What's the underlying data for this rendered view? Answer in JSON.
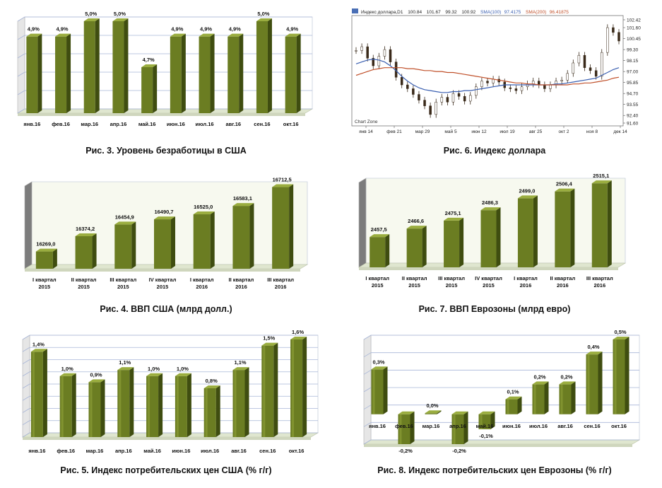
{
  "colors": {
    "bar_front": "#6b7d22",
    "bar_light": "#9aad3f",
    "bar_dark": "#3f4d10",
    "floor": "#dfe6cf",
    "wall_grid": "#a8b6d8",
    "fx_price": "#3a2a1a",
    "fx_ma1": "#3a5fb0",
    "fx_ma2": "#c0502a"
  },
  "figures": {
    "fig3": {
      "caption": "Рис. 3. Уровень безработицы в США",
      "chart_data": {
        "type": "bar",
        "categories": [
          "янв.16",
          "фев.16",
          "мар.16",
          "апр.16",
          "май.16",
          "июн.16",
          "июл.16",
          "авг.16",
          "сен.16",
          "окт.16"
        ],
        "values": [
          4.9,
          4.9,
          5.0,
          5.0,
          4.7,
          4.9,
          4.9,
          4.9,
          5.0,
          4.9
        ],
        "labels": [
          "4,9%",
          "4,9%",
          "5,0%",
          "5,0%",
          "4,7%",
          "4,9%",
          "4,9%",
          "4,9%",
          "5,0%",
          "4,9%"
        ],
        "ylim": [
          4.4,
          5.0
        ],
        "grid": true
      }
    },
    "fig4": {
      "caption": "Рис. 4. ВВП США (млрд долл.)",
      "chart_data": {
        "type": "bar",
        "categories": [
          [
            "I квартал",
            "2015"
          ],
          [
            "II квартал",
            "2015"
          ],
          [
            "III квартал",
            "2015"
          ],
          [
            "IV квартал",
            "2015"
          ],
          [
            "I квартал",
            "2016"
          ],
          [
            "II квартал",
            "2016"
          ],
          [
            "III квартал",
            "2016"
          ]
        ],
        "values": [
          16269.0,
          16374.2,
          16454.9,
          16490.7,
          16525.0,
          16583.1,
          16712.5
        ],
        "labels": [
          "16269,0",
          "16374,2",
          "16454,9",
          "16490,7",
          "16525,0",
          "16583,1",
          "16712,5"
        ],
        "ylim": [
          16150,
          16720
        ],
        "grid": false
      }
    },
    "fig5": {
      "caption": "Рис. 5. Индекс потребительских цен США (% г/г)",
      "chart_data": {
        "type": "bar",
        "categories": [
          "янв.16",
          "фев.16",
          "мар.16",
          "апр.16",
          "май.16",
          "июн.16",
          "июл.16",
          "авг.16",
          "сен.16",
          "окт.16"
        ],
        "values": [
          1.4,
          1.0,
          0.9,
          1.1,
          1.0,
          1.0,
          0.8,
          1.1,
          1.5,
          1.6
        ],
        "labels": [
          "1,4%",
          "1,0%",
          "0,9%",
          "1,1%",
          "1,0%",
          "1,0%",
          "0,8%",
          "1,1%",
          "1,5%",
          "1,6%"
        ],
        "ylim": [
          0,
          1.6
        ],
        "grid": true
      }
    },
    "fig6": {
      "caption": "Рис. 6. Индекс доллара",
      "chart_data": {
        "type": "line",
        "series_labels": [
          "Индекс доллара,D1",
          "100.84",
          "101.67",
          "99.32",
          "100.92",
          "SMA(100)",
          "97.4175",
          "SMA(200)",
          "96.41875"
        ],
        "watermark": "Chart Zone",
        "x_ticks": [
          "янв 14",
          "фев 21",
          "мар 29",
          "май 5",
          "июн 12",
          "июл 19",
          "авг 25",
          "окт 2",
          "ноя 8",
          "дек 14"
        ],
        "y_ticks": [
          "102.42",
          "101.60",
          "100.45",
          "99.30",
          "98.15",
          "97.00",
          "95.85",
          "94.70",
          "93.55",
          "92.40",
          "91.60"
        ],
        "ylim": [
          91.6,
          102.42
        ],
        "x_index": [
          0,
          5,
          10,
          15,
          20,
          25,
          30,
          35,
          40,
          45,
          50,
          55,
          60,
          65,
          70,
          75,
          80,
          85,
          90,
          95,
          100,
          105,
          110,
          115,
          120,
          125,
          130,
          135,
          140,
          145,
          150,
          155,
          160,
          165,
          170,
          175,
          180,
          185,
          190,
          195,
          200,
          205,
          210,
          215,
          220,
          225,
          230
        ],
        "price": [
          99.2,
          99.6,
          98.4,
          97.6,
          98.6,
          99.3,
          98.0,
          96.4,
          95.6,
          95.2,
          94.6,
          94.0,
          93.4,
          92.5,
          93.8,
          94.3,
          93.8,
          94.7,
          94.4,
          93.9,
          94.5,
          95.4,
          96.0,
          95.8,
          96.2,
          95.9,
          95.3,
          95.2,
          95.0,
          95.4,
          95.7,
          96.0,
          95.6,
          95.2,
          95.6,
          96.0,
          96.1,
          96.8,
          97.9,
          98.7,
          97.4,
          97.1,
          96.5,
          99.0,
          101.6,
          101.1,
          100.2
        ],
        "sma100": [
          97.8,
          98.0,
          98.2,
          98.3,
          98.2,
          98.0,
          97.6,
          97.1,
          96.5,
          96.0,
          95.6,
          95.3,
          95.1,
          95.0,
          94.9,
          94.8,
          94.8,
          94.9,
          94.9,
          95.0,
          95.0,
          95.1,
          95.2,
          95.3,
          95.4,
          95.5,
          95.6,
          95.6,
          95.6,
          95.6,
          95.6,
          95.6,
          95.6,
          95.6,
          95.6,
          95.7,
          95.7,
          95.8,
          95.9,
          96.0,
          96.1,
          96.2,
          96.3,
          96.6,
          96.9,
          97.2,
          97.4
        ],
        "sma200": [
          96.6,
          96.8,
          97.0,
          97.2,
          97.3,
          97.4,
          97.4,
          97.4,
          97.4,
          97.3,
          97.3,
          97.2,
          97.1,
          97.1,
          97.0,
          97.0,
          96.9,
          96.9,
          96.8,
          96.7,
          96.6,
          96.5,
          96.4,
          96.3,
          96.2,
          96.1,
          96.0,
          95.9,
          95.8,
          95.8,
          95.7,
          95.7,
          95.6,
          95.6,
          95.6,
          95.6,
          95.6,
          95.6,
          95.7,
          95.7,
          95.8,
          95.8,
          95.9,
          96.0,
          96.1,
          96.3,
          96.4
        ]
      }
    },
    "fig7": {
      "caption": "Рис. 7. ВВП Еврозоны (млрд евро)",
      "chart_data": {
        "type": "bar",
        "categories": [
          [
            "I квартал",
            "2015"
          ],
          [
            "II квартал",
            "2015"
          ],
          [
            "III квартал",
            "2015"
          ],
          [
            "IV квартал",
            "2015"
          ],
          [
            "I квартал",
            "2016"
          ],
          [
            "II квартал",
            "2016"
          ],
          [
            "III квартал",
            "2016"
          ]
        ],
        "values": [
          2457.5,
          2466.6,
          2475.1,
          2486.3,
          2499.0,
          2506.4,
          2515.1
        ],
        "labels": [
          "2457,5",
          "2466,6",
          "2475,1",
          "2486,3",
          "2499,0",
          "2506,4",
          "2515,1"
        ],
        "ylim": [
          2425,
          2516
        ],
        "grid": false
      }
    },
    "fig8": {
      "caption": "Рис. 8. Индекс потребительских цен Еврозоны (% г/г)",
      "chart_data": {
        "type": "bar",
        "categories": [
          "янв.16",
          "фев.16",
          "мар.16",
          "апр.16",
          "май.16",
          "июн.16",
          "июл.16",
          "авг.16",
          "сен.16",
          "окт.16"
        ],
        "values": [
          0.3,
          -0.2,
          0.0,
          -0.2,
          -0.1,
          0.1,
          0.2,
          0.2,
          0.4,
          0.5
        ],
        "labels": [
          "0,3%",
          "-0,2%",
          "0,0%",
          "-0,2%",
          "-0,1%",
          "0,1%",
          "0,2%",
          "0,2%",
          "0,4%",
          "0,5%"
        ],
        "ylim": [
          -0.2,
          0.5
        ],
        "grid": true
      }
    }
  }
}
